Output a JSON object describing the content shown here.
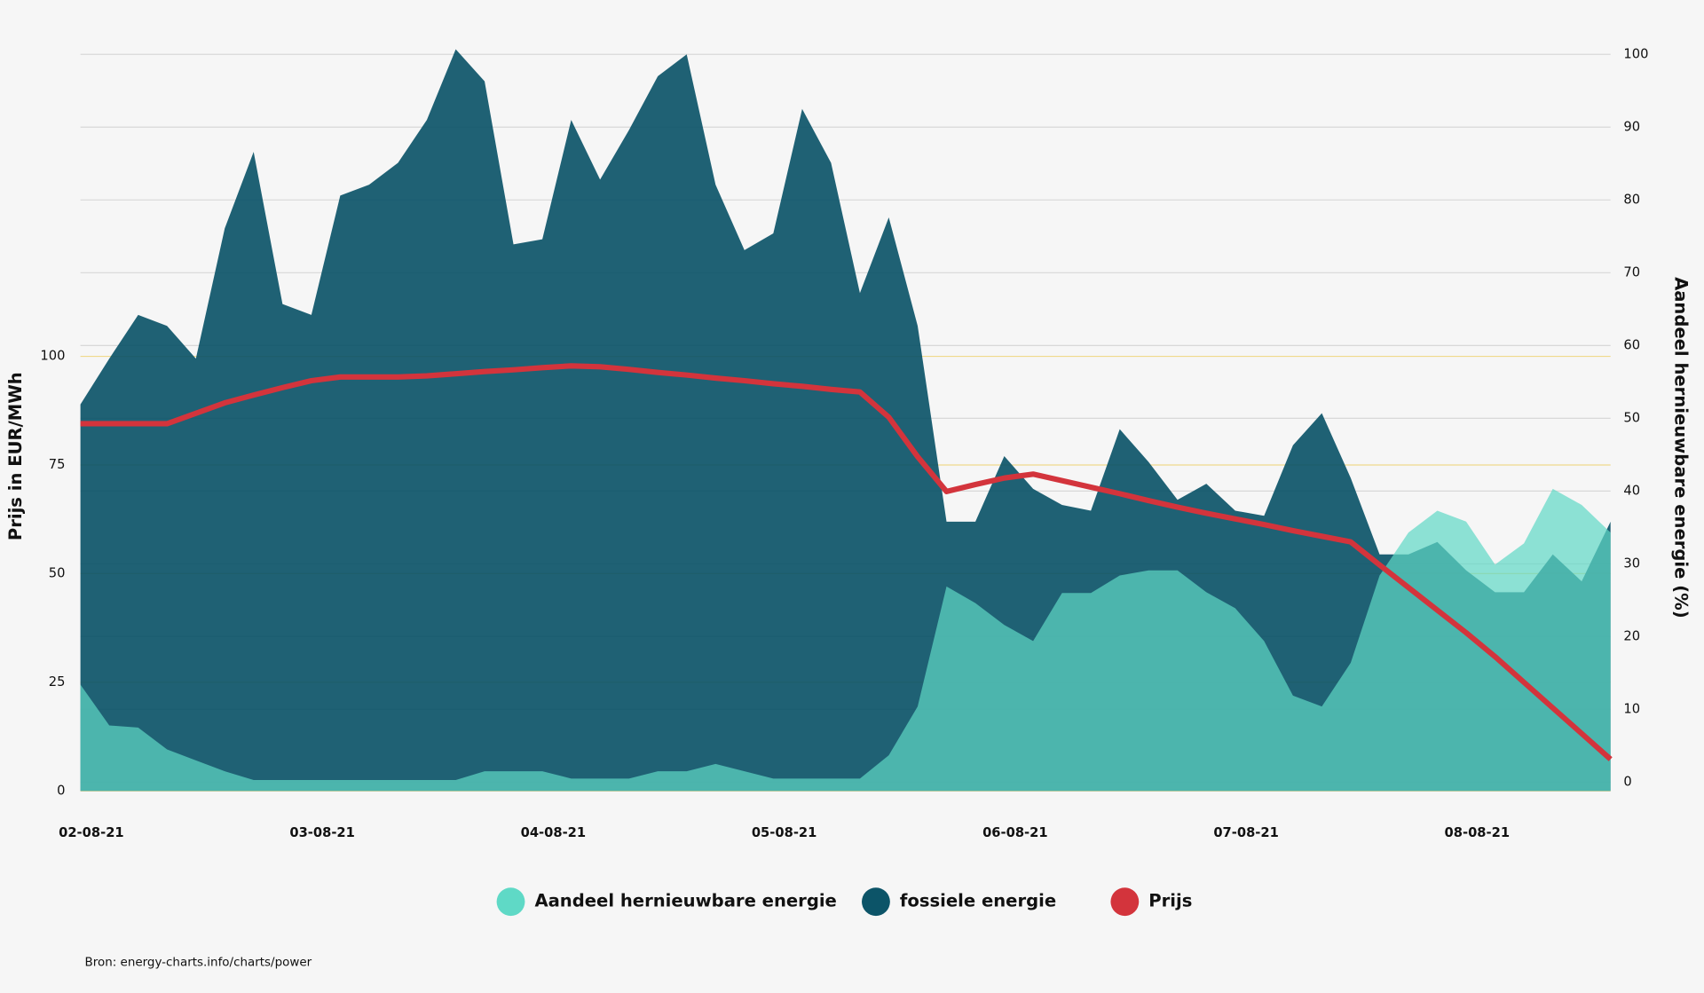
{
  "chart_data": {
    "type": "area",
    "y_label": "Prijs in EUR/MWh",
    "y2_label": "Aandeel hernieuwbare energie (%)",
    "source": "Bron: energy-charts.info/charts/power",
    "categories": [
      "02-08-21",
      null,
      null,
      null,
      null,
      null,
      null,
      null,
      "03-08-21",
      null,
      null,
      null,
      null,
      null,
      null,
      null,
      "04-08-21",
      null,
      null,
      null,
      null,
      null,
      null,
      null,
      "05-08-21",
      null,
      null,
      null,
      null,
      null,
      null,
      null,
      "06-08-21",
      null,
      null,
      null,
      null,
      null,
      null,
      null,
      "07-08-21",
      null,
      null,
      null,
      null,
      null,
      null,
      null,
      "08-08-21",
      null,
      null,
      null,
      null,
      null
    ],
    "ylim": [
      0,
      172
    ],
    "yticks": [
      0,
      25,
      50,
      75,
      100
    ],
    "y2lim": [
      -1.2,
      101.5
    ],
    "y2ticks": [
      0,
      10,
      20,
      30,
      40,
      50,
      60,
      70,
      80,
      90,
      100
    ],
    "grid": true,
    "series": [
      {
        "name": "fossiele energie",
        "color": "#0c5468",
        "axis": "y2",
        "values": [
          51.9,
          58.2,
          64.2,
          62.7,
          58.2,
          76.1,
          86.6,
          65.7,
          64.2,
          80.6,
          82.1,
          85.1,
          91,
          100.7,
          96.3,
          73.9,
          74.6,
          91,
          82.8,
          89.6,
          97,
          100,
          82.1,
          73.1,
          75.4,
          92.5,
          85.1,
          67.2,
          77.6,
          62.7,
          35.8,
          35.8,
          44.8,
          40.3,
          38.1,
          37.3,
          48.5,
          44,
          38.8,
          41,
          37.3,
          36.6,
          46.3,
          50.7,
          41.8,
          31.3,
          31.3,
          33,
          29.1,
          26.1,
          26.1,
          31.3,
          27.6,
          35.8
        ]
      },
      {
        "name": "Aandeel hernieuwbare energie",
        "color": "#5fd9c6",
        "axis": "y2",
        "values": [
          13.4,
          7.8,
          7.5,
          4.5,
          3,
          1.5,
          0.3,
          0.3,
          0.3,
          0.3,
          0.3,
          0.3,
          0.3,
          0.3,
          1.5,
          1.5,
          1.5,
          0.5,
          0.5,
          0.5,
          1.5,
          1.5,
          2.5,
          1.5,
          0.5,
          0.5,
          0.5,
          0.5,
          3.7,
          10.4,
          26.9,
          24.6,
          21.6,
          19.4,
          26,
          26,
          28.4,
          29.1,
          29.1,
          26.1,
          23.9,
          19.4,
          11.9,
          10.4,
          16.4,
          28.4,
          34.3,
          37.3,
          35.8,
          29.9,
          32.8,
          40.3,
          38.1,
          34.3
        ]
      },
      {
        "name": "Prijs",
        "color": "#d3343c",
        "type": "line",
        "values": [
          84.5,
          84.5,
          84.5,
          84.5,
          86.9,
          89.3,
          91.1,
          92.8,
          94.4,
          95.25,
          95.25,
          95.25,
          95.5,
          96,
          96.5,
          96.9,
          97.4,
          97.8,
          97.6,
          97,
          96.3,
          95.7,
          95,
          94.4,
          93.7,
          93.1,
          92.4,
          91.8,
          86,
          76.9,
          68.9,
          70.5,
          72,
          72.9,
          71.4,
          69.9,
          68.4,
          66.8,
          65.3,
          63.9,
          62.6,
          61.3,
          59.9,
          58.6,
          57.3,
          52,
          46.8,
          41.6,
          36.4,
          30.9,
          25,
          19.1,
          13.2,
          7.3
        ]
      }
    ]
  }
}
